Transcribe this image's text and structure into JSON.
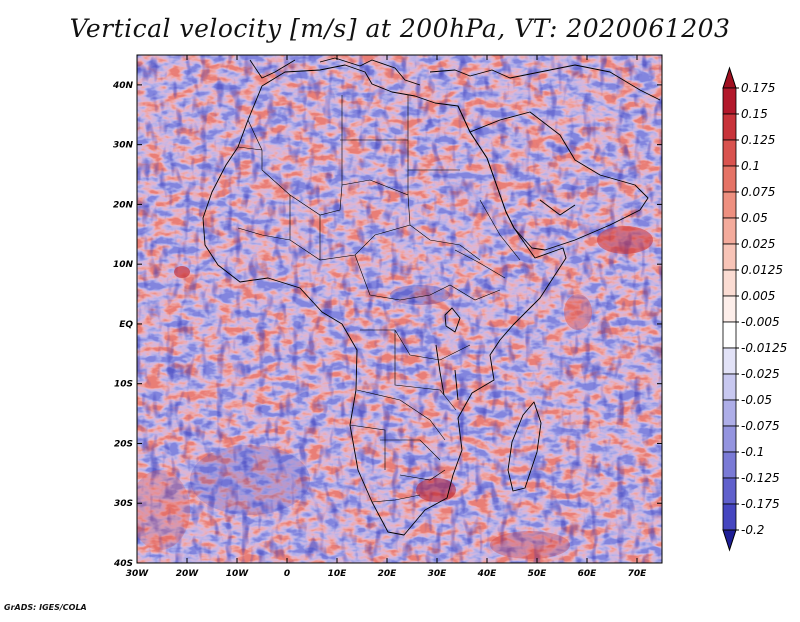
{
  "title": "Vertical velocity [m/s] at 200hPa, VT: 2020061203",
  "map": {
    "lon_range": [
      -30,
      75
    ],
    "lat_range": [
      -40,
      45
    ],
    "lon_tick_labels": [
      {
        "lon": -30,
        "label": "30W"
      },
      {
        "lon": -20,
        "label": "20W"
      },
      {
        "lon": -10,
        "label": "10W"
      },
      {
        "lon": 0,
        "label": "0"
      },
      {
        "lon": 10,
        "label": "10E"
      },
      {
        "lon": 20,
        "label": "20E"
      },
      {
        "lon": 30,
        "label": "30E"
      },
      {
        "lon": 40,
        "label": "40E"
      },
      {
        "lon": 50,
        "label": "50E"
      },
      {
        "lon": 60,
        "label": "60E"
      },
      {
        "lon": 70,
        "label": "70E"
      }
    ],
    "lat_tick_labels": [
      {
        "lat": 40,
        "label": "40N"
      },
      {
        "lat": 30,
        "label": "30N"
      },
      {
        "lat": 20,
        "label": "20N"
      },
      {
        "lat": 10,
        "label": "10N"
      },
      {
        "lat": 0,
        "label": "EQ"
      },
      {
        "lat": -10,
        "label": "10S"
      },
      {
        "lat": -20,
        "label": "20S"
      },
      {
        "lat": -30,
        "label": "30S"
      },
      {
        "lat": -40,
        "label": "40S"
      }
    ]
  },
  "colorbar": {
    "levels": [
      {
        "label": "0.175",
        "color": "#b2182b"
      },
      {
        "label": "0.15",
        "color": "#c8333a"
      },
      {
        "label": "0.125",
        "color": "#d9534f"
      },
      {
        "label": "0.1",
        "color": "#e57366"
      },
      {
        "label": "0.075",
        "color": "#ee9080"
      },
      {
        "label": "0.05",
        "color": "#f4ab9c"
      },
      {
        "label": "0.025",
        "color": "#f8c4b7"
      },
      {
        "label": "0.0125",
        "color": "#fbdcd3"
      },
      {
        "label": "0.005",
        "color": "#fdeeea"
      },
      {
        "label": "-0.005",
        "color": "#ffffff"
      },
      {
        "label": "-0.0125",
        "color": "#e2e2f7"
      },
      {
        "label": "-0.025",
        "color": "#c8c8f0"
      },
      {
        "label": "-0.05",
        "color": "#aeaee8"
      },
      {
        "label": "-0.075",
        "color": "#9494df"
      },
      {
        "label": "-0.1",
        "color": "#7a7ad6"
      },
      {
        "label": "-0.125",
        "color": "#6060cc"
      },
      {
        "label": "-0.175",
        "color": "#4646c0"
      },
      {
        "label": "-0.2",
        "color": "#2c2cab"
      }
    ],
    "top_color": "#a01020",
    "bottom_color": "#1e1e96"
  },
  "credit": "GrADS: IGES/COLA"
}
